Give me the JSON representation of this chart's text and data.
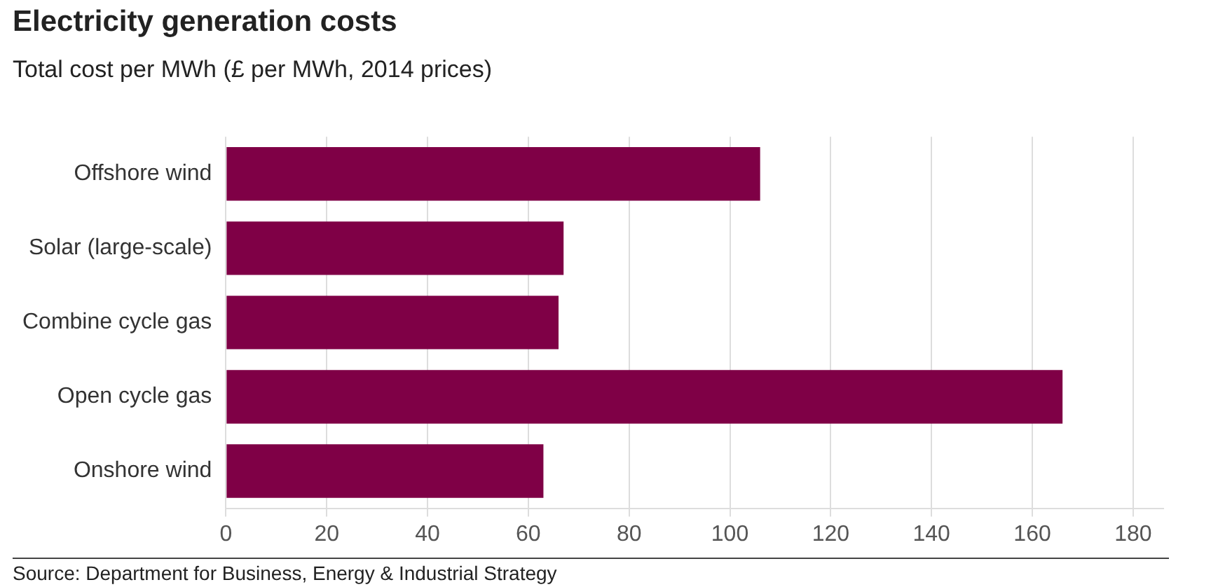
{
  "chart_data": {
    "type": "bar",
    "orientation": "horizontal",
    "title": "Electricity generation costs",
    "subtitle": "Total cost per MWh (£ per MWh, 2014 prices)",
    "categories": [
      "Offshore wind",
      "Solar (large-scale)",
      "Combine cycle gas",
      "Open cycle gas",
      "Onshore wind"
    ],
    "values": [
      106,
      67,
      66,
      166,
      63
    ],
    "color": "#7f0046",
    "xlim": [
      0,
      186
    ],
    "xticks": [
      0,
      20,
      40,
      60,
      80,
      100,
      120,
      140,
      160,
      180
    ],
    "grid": "x",
    "annotations": [
      "Source: Department for Business, Energy & Industrial Strategy"
    ]
  }
}
